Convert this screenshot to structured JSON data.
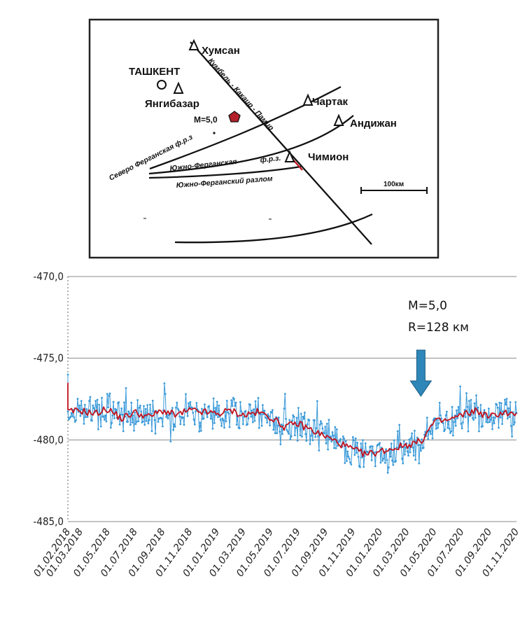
{
  "map": {
    "stations": [
      {
        "name": "Хумсан"
      },
      {
        "name": "Янгибазар"
      },
      {
        "name": "Чартак"
      },
      {
        "name": "Андижан"
      },
      {
        "name": "Чимион"
      }
    ],
    "city": "ТАШКЕНТ",
    "epicenter_label": "М=5,0",
    "faults": {
      "north_fergana": "Северо Ферганская ф.р.з",
      "south_fergana_zone_a": "Южно-Ферганская",
      "south_fergana_zone_b": "ф.р.з.",
      "south_fergana_fault": "Южно-Ферганский разлом",
      "kumbel": "Кумбель - Какаир - Памир"
    },
    "scale_label": "100км",
    "colors": {
      "epicenter": "#b3202a",
      "frame": "#222222"
    }
  },
  "chart_data": {
    "type": "line",
    "x_range": [
      "01.02.2018",
      "01.11.2020"
    ],
    "ylim": [
      -485,
      -470
    ],
    "y_ticks": [
      "-470,0",
      "-475,0",
      "-480,0",
      "-485,0"
    ],
    "x_ticks": [
      "01.02.2018",
      "01.03.2018",
      "01.05.2018",
      "01.07.2018",
      "01.09.2018",
      "01.11.2018",
      "01.01.2019",
      "01.03.2019",
      "01.05.2019",
      "01.07.2019",
      "01.09.2019",
      "01.11.2019",
      "01.01.2020",
      "01.03.2020",
      "01.05.2020",
      "01.07.2020",
      "01.09.2020",
      "01.11.2020"
    ],
    "grid": "horizontal",
    "series": [
      {
        "color": "#3a9ad9",
        "marker": "dot",
        "noisy": true,
        "smooth": [
          [
            "01.02.2018",
            -476.5
          ],
          [
            "01.02.2018",
            -478.3
          ],
          [
            "01.03.2018",
            -478.2
          ],
          [
            "01.04.2018",
            -478.4
          ],
          [
            "01.05.2018",
            -478.1
          ],
          [
            "01.06.2018",
            -478.7
          ],
          [
            "01.07.2018",
            -478.3
          ],
          [
            "01.08.2018",
            -478.6
          ],
          [
            "01.09.2018",
            -478.2
          ],
          [
            "01.10.2018",
            -478.5
          ],
          [
            "01.11.2018",
            -478.2
          ],
          [
            "01.12.2018",
            -478.3
          ],
          [
            "01.01.2019",
            -478.4
          ],
          [
            "01.02.2019",
            -478.2
          ],
          [
            "01.03.2019",
            -478.5
          ],
          [
            "01.04.2019",
            -478.3
          ],
          [
            "01.05.2019",
            -478.6
          ],
          [
            "01.06.2019",
            -479.2
          ],
          [
            "01.07.2019",
            -479.0
          ],
          [
            "01.08.2019",
            -479.4
          ],
          [
            "01.09.2019",
            -479.8
          ],
          [
            "01.10.2019",
            -480.2
          ],
          [
            "01.11.2019",
            -480.6
          ],
          [
            "01.12.2019",
            -480.9
          ],
          [
            "01.01.2020",
            -480.7
          ],
          [
            "01.02.2020",
            -480.5
          ],
          [
            "01.03.2020",
            -480.3
          ],
          [
            "01.04.2020",
            -480.1
          ],
          [
            "01.05.2020",
            -478.9
          ],
          [
            "01.06.2020",
            -478.8
          ],
          [
            "01.07.2020",
            -478.5
          ],
          [
            "01.08.2020",
            -478.2
          ],
          [
            "01.09.2020",
            -478.6
          ],
          [
            "01.10.2020",
            -478.3
          ],
          [
            "01.11.2020",
            -478.5
          ]
        ]
      },
      {
        "color": "#c1121f",
        "marker": "none",
        "noisy": false,
        "smooth": [
          [
            "01.02.2018",
            -476.5
          ],
          [
            "01.02.2018",
            -478.3
          ],
          [
            "01.03.2018",
            -478.2
          ],
          [
            "01.04.2018",
            -478.4
          ],
          [
            "01.05.2018",
            -478.1
          ],
          [
            "01.06.2018",
            -478.7
          ],
          [
            "01.07.2018",
            -478.3
          ],
          [
            "01.08.2018",
            -478.6
          ],
          [
            "01.09.2018",
            -478.2
          ],
          [
            "01.10.2018",
            -478.5
          ],
          [
            "01.11.2018",
            -478.2
          ],
          [
            "01.12.2018",
            -478.3
          ],
          [
            "01.01.2019",
            -478.4
          ],
          [
            "01.02.2019",
            -478.2
          ],
          [
            "01.03.2019",
            -478.5
          ],
          [
            "01.04.2019",
            -478.3
          ],
          [
            "01.05.2019",
            -478.6
          ],
          [
            "01.06.2019",
            -479.2
          ],
          [
            "01.07.2019",
            -479.0
          ],
          [
            "01.08.2019",
            -479.4
          ],
          [
            "01.09.2019",
            -479.8
          ],
          [
            "01.10.2019",
            -480.2
          ],
          [
            "01.11.2019",
            -480.6
          ],
          [
            "01.12.2019",
            -480.9
          ],
          [
            "01.01.2020",
            -480.7
          ],
          [
            "01.02.2020",
            -480.5
          ],
          [
            "01.03.2020",
            -480.3
          ],
          [
            "01.04.2020",
            -480.1
          ],
          [
            "01.05.2020",
            -478.9
          ],
          [
            "01.06.2020",
            -478.8
          ],
          [
            "01.07.2020",
            -478.5
          ],
          [
            "01.08.2020",
            -478.2
          ],
          [
            "01.09.2020",
            -478.6
          ],
          [
            "01.10.2020",
            -478.3
          ],
          [
            "01.11.2020",
            -478.5
          ]
        ]
      }
    ],
    "annotation": {
      "line1": "М=5,0",
      "line2": "R=128 км",
      "arrow_date": "01.04.2020",
      "arrow_color": "#2f86b8"
    }
  }
}
